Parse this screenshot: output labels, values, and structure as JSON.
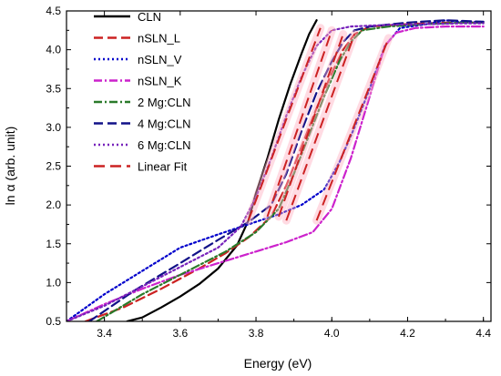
{
  "chart_data": {
    "type": "line",
    "title": "",
    "xlabel": "Energy (eV)",
    "ylabel": "ln α (arb. unit)",
    "xlim": [
      3.3,
      4.42
    ],
    "ylim": [
      0.5,
      4.5
    ],
    "xticks": [
      "3.4",
      "3.6",
      "3.8",
      "4.0",
      "4.2",
      "4.4"
    ],
    "yticks": [
      "0.5",
      "1.0",
      "1.5",
      "2.0",
      "2.5",
      "3.0",
      "3.5",
      "4.0",
      "4.5"
    ],
    "grid": false,
    "legend_position": "top-left",
    "series": [
      {
        "name": "CLN",
        "color": "#000000",
        "style": "solid",
        "x": [
          3.46,
          3.5,
          3.55,
          3.6,
          3.65,
          3.7,
          3.75,
          3.78,
          3.8,
          3.83,
          3.86,
          3.89,
          3.92,
          3.94,
          3.96
        ],
        "y": [
          0.5,
          0.55,
          0.68,
          0.82,
          0.98,
          1.18,
          1.48,
          1.8,
          2.15,
          2.6,
          3.1,
          3.55,
          3.95,
          4.2,
          4.38
        ]
      },
      {
        "name": "nSLN_L",
        "color": "#cc2222",
        "style": "dash",
        "x": [
          3.35,
          3.45,
          3.55,
          3.65,
          3.72,
          3.78,
          3.84,
          3.88,
          3.92,
          3.96,
          4.0,
          4.03,
          4.06,
          4.1,
          4.2,
          4.3,
          4.4
        ],
        "y": [
          0.5,
          0.68,
          0.92,
          1.18,
          1.38,
          1.58,
          1.85,
          2.25,
          2.75,
          3.25,
          3.7,
          4.0,
          4.2,
          4.3,
          4.33,
          4.35,
          4.35
        ]
      },
      {
        "name": "nSLN_V",
        "color": "#0000cc",
        "style": "dot",
        "x": [
          3.3,
          3.4,
          3.5,
          3.6,
          3.7,
          3.78,
          3.86,
          3.92,
          3.98,
          4.02,
          4.06,
          4.1,
          4.14,
          4.18,
          4.25,
          4.3,
          4.35,
          4.4
        ],
        "y": [
          0.5,
          0.85,
          1.15,
          1.45,
          1.62,
          1.75,
          1.88,
          2.0,
          2.2,
          2.55,
          3.0,
          3.5,
          4.05,
          4.28,
          4.33,
          4.38,
          4.35,
          4.36
        ]
      },
      {
        "name": "nSLN_K",
        "color": "#cc22cc",
        "style": "dashdot",
        "x": [
          3.3,
          3.4,
          3.5,
          3.6,
          3.7,
          3.8,
          3.88,
          3.95,
          4.0,
          4.05,
          4.1,
          4.14,
          4.17,
          4.22,
          4.3,
          4.4
        ],
        "y": [
          0.5,
          0.72,
          0.92,
          1.1,
          1.25,
          1.4,
          1.52,
          1.65,
          1.95,
          2.6,
          3.4,
          4.05,
          4.22,
          4.28,
          4.3,
          4.3
        ]
      },
      {
        "name": "2 Mg:CLN",
        "color": "#2a7a2a",
        "style": "dashdot",
        "x": [
          3.38,
          3.5,
          3.62,
          3.72,
          3.8,
          3.86,
          3.9,
          3.94,
          3.98,
          4.02,
          4.05,
          4.08,
          4.15,
          4.25,
          4.35,
          4.4
        ],
        "y": [
          0.5,
          0.85,
          1.15,
          1.4,
          1.65,
          1.95,
          2.4,
          2.9,
          3.4,
          3.85,
          4.1,
          4.25,
          4.3,
          4.33,
          4.35,
          4.35
        ]
      },
      {
        "name": "4 Mg:CLN",
        "color": "#111188",
        "style": "dash",
        "x": [
          3.36,
          3.48,
          3.6,
          3.7,
          3.78,
          3.84,
          3.88,
          3.92,
          3.96,
          4.0,
          4.03,
          4.06,
          4.1,
          4.2,
          4.3,
          4.4
        ],
        "y": [
          0.5,
          0.9,
          1.25,
          1.55,
          1.78,
          2.0,
          2.4,
          2.95,
          3.45,
          3.85,
          4.1,
          4.25,
          4.3,
          4.35,
          4.38,
          4.36
        ]
      },
      {
        "name": "6 Mg:CLN",
        "color": "#7722bb",
        "style": "dot",
        "x": [
          3.3,
          3.4,
          3.5,
          3.6,
          3.7,
          3.76,
          3.8,
          3.84,
          3.88,
          3.92,
          3.96,
          4.0,
          4.05,
          4.15,
          4.25,
          4.35,
          4.4
        ],
        "y": [
          0.5,
          0.7,
          0.95,
          1.2,
          1.45,
          1.72,
          2.1,
          2.6,
          3.15,
          3.65,
          4.05,
          4.25,
          4.3,
          4.32,
          4.33,
          4.34,
          4.34
        ]
      }
    ],
    "fits": [
      {
        "name": "Linear Fit",
        "color": "#cc2222",
        "x": [
          3.78,
          3.97
        ],
        "y": [
          1.8,
          4.28
        ]
      },
      {
        "name": "Linear Fit",
        "color": "#cc2222",
        "x": [
          3.83,
          4.0
        ],
        "y": [
          1.85,
          4.25
        ]
      },
      {
        "name": "Linear Fit",
        "color": "#cc2222",
        "x": [
          3.86,
          4.03
        ],
        "y": [
          1.85,
          4.2
        ]
      },
      {
        "name": "Linear Fit",
        "color": "#cc2222",
        "x": [
          3.88,
          4.06
        ],
        "y": [
          1.8,
          4.2
        ]
      },
      {
        "name": "Linear Fit",
        "color": "#cc2222",
        "x": [
          3.96,
          4.15
        ],
        "y": [
          1.8,
          4.15
        ]
      }
    ],
    "legend": [
      {
        "label": "CLN",
        "color": "#000000",
        "style": "solid"
      },
      {
        "label": "nSLN_L",
        "color": "#cc2222",
        "style": "dash"
      },
      {
        "label": "nSLN_V",
        "color": "#0000cc",
        "style": "dot"
      },
      {
        "label": "nSLN_K",
        "color": "#cc22cc",
        "style": "dashdot"
      },
      {
        "label": "2 Mg:CLN",
        "color": "#2a7a2a",
        "style": "dashdot"
      },
      {
        "label": "4 Mg:CLN",
        "color": "#111188",
        "style": "dash"
      },
      {
        "label": "6 Mg:CLN",
        "color": "#7722bb",
        "style": "dot"
      },
      {
        "label": "Linear Fit",
        "color": "#cc2222",
        "style": "longdash"
      }
    ]
  }
}
